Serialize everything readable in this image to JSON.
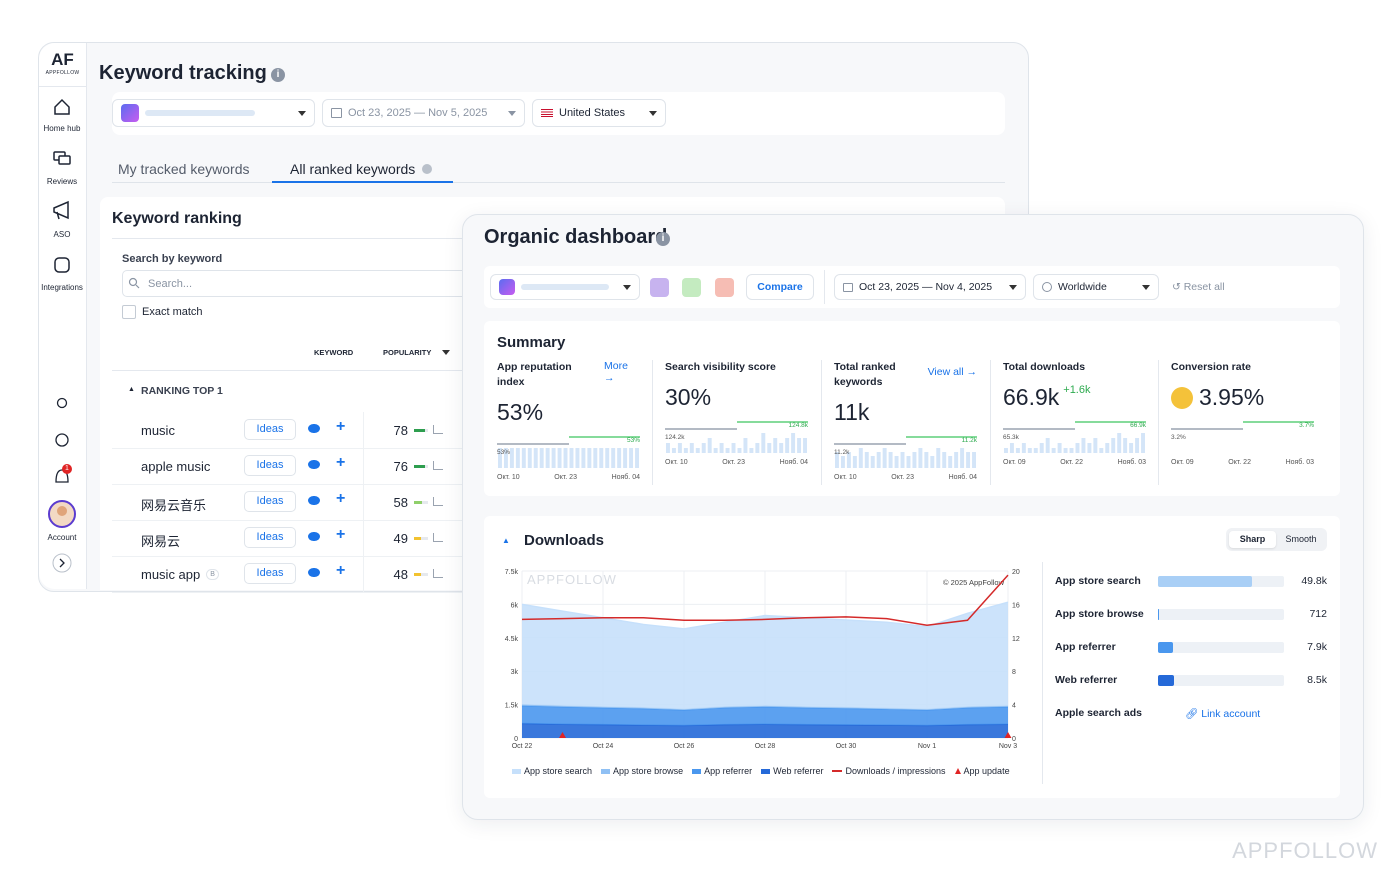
{
  "sidebar": {
    "logo": "AF",
    "logo_sub": "APPFOLLOW",
    "items": [
      "Home hub",
      "Reviews",
      "ASO",
      "Integrations"
    ],
    "notification_count": 1,
    "account": "Account"
  },
  "keyword_tracking": {
    "title": "Keyword tracking",
    "date_range": "Oct 23, 2025 — Nov 5, 2025",
    "country": "United States",
    "tabs": [
      "My tracked keywords",
      "All ranked keywords"
    ],
    "panel_title": "Keyword ranking",
    "search_label": "Search by keyword",
    "search_placeholder": "Search...",
    "exact_match": "Exact match",
    "columns": [
      "KEYWORD",
      "POPULARITY"
    ],
    "group": "RANKING TOP 1",
    "ideas": "Ideas",
    "rows": [
      {
        "keyword": "music",
        "popularity": 78,
        "color": "#2e9e4f"
      },
      {
        "keyword": "apple music",
        "popularity": 76,
        "color": "#2e9e4f"
      },
      {
        "keyword": "网易云音乐",
        "popularity": 58,
        "color": "#8fcf6a"
      },
      {
        "keyword": "网易云",
        "popularity": 49,
        "color": "#f2c230"
      },
      {
        "keyword": "music app",
        "badge": "B",
        "popularity": 48,
        "color": "#f2c230"
      }
    ]
  },
  "organic": {
    "title": "Organic dashboard",
    "compare": "Compare",
    "date_range": "Oct 23, 2025 — Nov 4, 2025",
    "region": "Worldwide",
    "reset": "Reset all",
    "summary_title": "Summary",
    "cards": [
      {
        "label": "App reputation index",
        "link": "More",
        "value": "53%",
        "start": "53%",
        "end": "53%",
        "dates": [
          "Окт. 10",
          "Окт. 23",
          "Нояб. 04"
        ],
        "bars": [
          5,
          5,
          5,
          5,
          5,
          5,
          5,
          5,
          5,
          5,
          5,
          5,
          5,
          5,
          5,
          5,
          5,
          5,
          5,
          5,
          5,
          5,
          5,
          5
        ]
      },
      {
        "label": "Search visibility score",
        "value": "30%",
        "start": "124.2k",
        "end": "124.8k",
        "dates": [
          "Окт. 10",
          "Окт. 23",
          "Нояб. 04"
        ],
        "bars": [
          2,
          1,
          2,
          1,
          2,
          1,
          2,
          3,
          1,
          2,
          1,
          2,
          1,
          3,
          1,
          2,
          4,
          2,
          3,
          2,
          3,
          4,
          3,
          3
        ]
      },
      {
        "label": "Total ranked keywords",
        "link": "View all",
        "value": "11k",
        "start": "11.2k",
        "end": "11.2k",
        "dates": [
          "Окт. 10",
          "Окт. 23",
          "Нояб. 04"
        ],
        "bars": [
          4,
          3,
          4,
          3,
          5,
          4,
          3,
          4,
          5,
          4,
          3,
          4,
          3,
          4,
          5,
          4,
          3,
          5,
          4,
          3,
          4,
          5,
          4,
          4
        ]
      },
      {
        "label": "Total downloads",
        "value": "66.9k",
        "delta": "+1.6k",
        "start": "65.3k",
        "end": "66.9k",
        "dates": [
          "Окт. 09",
          "Окт. 22",
          "Нояб. 03"
        ],
        "bars": [
          1,
          2,
          1,
          2,
          1,
          1,
          2,
          3,
          1,
          2,
          1,
          1,
          2,
          3,
          2,
          3,
          1,
          2,
          3,
          4,
          3,
          2,
          3,
          4
        ]
      },
      {
        "label": "Conversion rate",
        "value": "3.95%",
        "start": "3.2%",
        "end": "3.7%",
        "dates": [
          "Окт. 09",
          "Окт. 22",
          "Нояб. 03"
        ],
        "bars": [
          0,
          0,
          0,
          0,
          0,
          0,
          0,
          0,
          0,
          0,
          0,
          0,
          0,
          0,
          0,
          0,
          0,
          0,
          0,
          0,
          0,
          0,
          0,
          0
        ]
      }
    ],
    "downloads": {
      "title": "Downloads",
      "toggle": [
        "Sharp",
        "Smooth"
      ],
      "watermark": "APPFOLLOW",
      "copyright": "© 2025 AppFollow",
      "chart": {
        "type": "stacked-area",
        "categories": [
          "Oct 22",
          null,
          "Oct 24",
          null,
          "Oct 26",
          null,
          "Oct 28",
          null,
          "Oct 30",
          null,
          "Nov 1",
          null,
          "Nov 3"
        ],
        "ylim": [
          0,
          7500
        ],
        "yticks": [
          0,
          {
            "value": 1500,
            "label": "1.5k"
          },
          {
            "value": 3000,
            "label": "3k"
          },
          {
            "value": 4500,
            "label": "4.5k"
          },
          {
            "value": 6000,
            "label": "6k"
          },
          {
            "value": 7500,
            "label": "7.5k"
          }
        ],
        "y2lim": [
          0,
          20
        ],
        "y2ticks": [
          0,
          4,
          8,
          12,
          16,
          20
        ],
        "grid": true,
        "series": [
          {
            "name": "App store search",
            "color": "#c6e0fb",
            "values": [
              4500,
              4260,
              4000,
              3740,
              3610,
              3800,
              4060,
              4000,
              3930,
              3870,
              3710,
              4200,
              4660
            ]
          },
          {
            "name": "App store browse",
            "color": "#8fc0f4",
            "values": [
              50,
              40,
              40,
              40,
              30,
              40,
              40,
              40,
              40,
              30,
              30,
              40,
              40
            ]
          },
          {
            "name": "App referrer",
            "color": "#4a97ee",
            "values": [
              800,
              780,
              760,
              740,
              700,
              760,
              780,
              760,
              740,
              720,
              700,
              760,
              780
            ]
          },
          {
            "name": "Web referrer",
            "color": "#2569d8",
            "values": [
              650,
              620,
              600,
              580,
              560,
              600,
              620,
              600,
              590,
              580,
              560,
              600,
              620
            ]
          },
          {
            "name": "Downloads / impressions",
            "color": "#d42a2a",
            "axis": "y2",
            "values": [
              14.2,
              14.3,
              14.4,
              14.4,
              14.1,
              14.1,
              14.2,
              14.4,
              14.5,
              14.3,
              13.5,
              14.1,
              19.5
            ]
          },
          {
            "name": "App update",
            "color": "#e02424",
            "axis": "y2",
            "values": [
              null,
              0,
              null,
              null,
              null,
              null,
              null,
              null,
              null,
              null,
              null,
              null,
              0
            ]
          }
        ]
      },
      "sources_total": 66900,
      "sources": [
        {
          "name": "App store search",
          "value": 49800,
          "label": "49.8k"
        },
        {
          "name": "App store browse",
          "value": 712,
          "label": "712"
        },
        {
          "name": "App referrer",
          "value": 7900,
          "label": "7.9k"
        },
        {
          "name": "Web referrer",
          "value": 8500,
          "label": "8.5k"
        }
      ],
      "apple_ads": "Apple search ads",
      "link_account": "Link account"
    }
  },
  "watermark": "APPFOLLOW"
}
